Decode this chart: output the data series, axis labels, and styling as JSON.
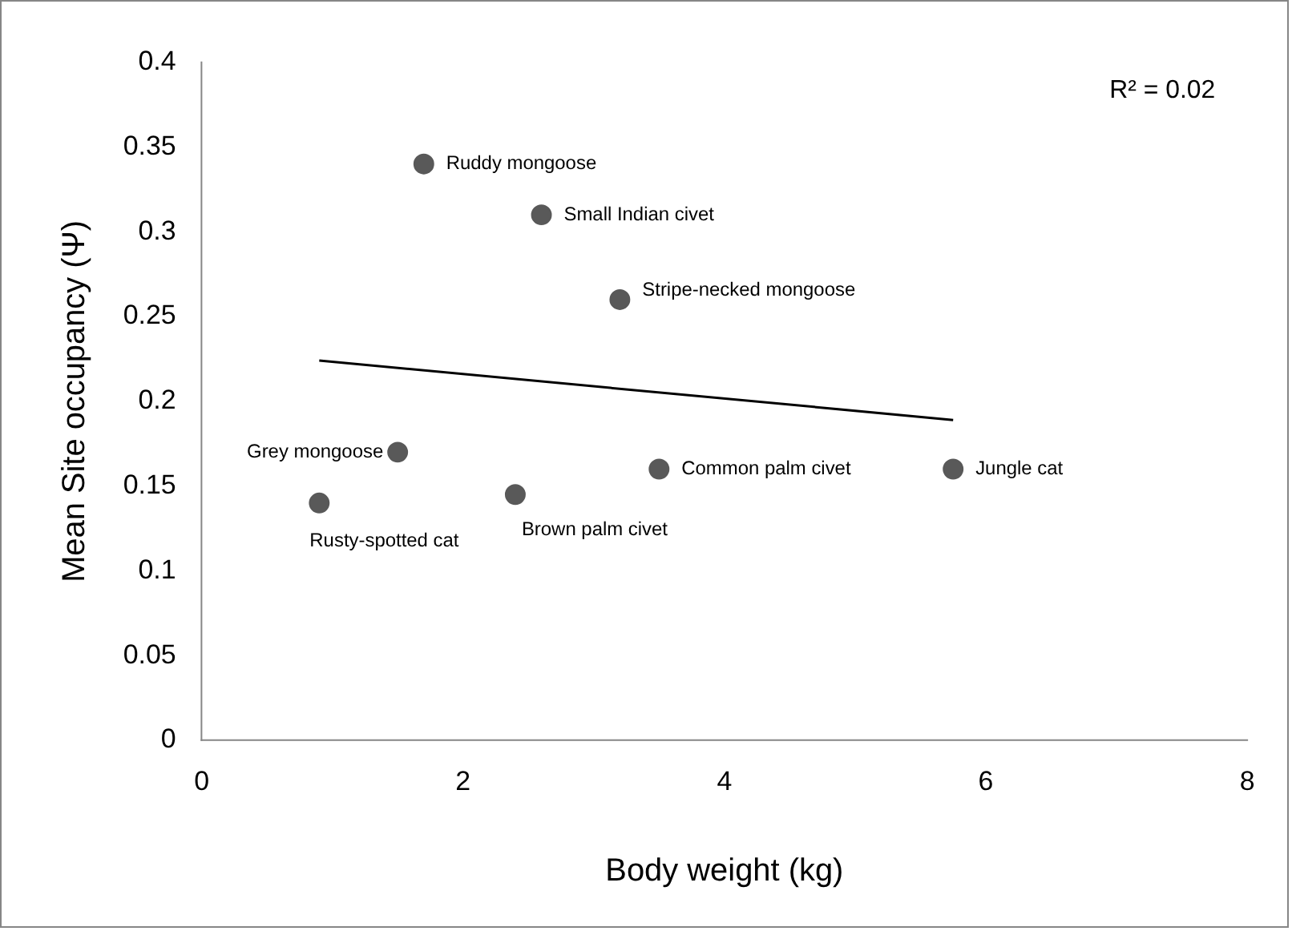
{
  "chart_data": {
    "type": "scatter",
    "xlabel": "Body weight (kg)",
    "ylabel": "Mean Site occupancy (Ψ)",
    "xlim": [
      0,
      8
    ],
    "xticks": [
      0,
      2,
      4,
      6,
      8
    ],
    "ylim": [
      0,
      0.4
    ],
    "yticks": [
      0,
      0.05,
      0.1,
      0.15,
      0.2,
      0.25,
      0.3,
      0.35,
      0.4
    ],
    "grid": false,
    "legend": false,
    "series": [
      {
        "marker": "circle",
        "color": "#595959",
        "x": [
          1.7,
          2.6,
          3.2,
          1.5,
          0.9,
          2.4,
          3.5,
          5.75
        ],
        "values": [
          0.34,
          0.31,
          0.26,
          0.17,
          0.14,
          0.145,
          0.16,
          0.16
        ]
      },
      {
        "type": "line",
        "marker": "none",
        "color": "#000000",
        "x": [
          0.9,
          5.75
        ],
        "values": [
          0.224,
          0.189
        ]
      }
    ],
    "annotations": [
      "R² = 0.02",
      {
        "text": "Ruddy mongoose",
        "x": 1.7,
        "y": 0.34
      },
      {
        "text": "Small Indian civet",
        "x": 2.6,
        "y": 0.31
      },
      {
        "text": "Stripe-necked mongoose",
        "x": 3.2,
        "y": 0.26
      },
      {
        "text": "Grey mongoose",
        "x": 1.5,
        "y": 0.17
      },
      {
        "text": "Rusty-spotted cat",
        "x": 0.9,
        "y": 0.14
      },
      {
        "text": "Brown palm civet",
        "x": 2.4,
        "y": 0.145
      },
      {
        "text": "Common palm civet",
        "x": 3.5,
        "y": 0.16
      },
      {
        "text": "Jungle cat",
        "x": 5.75,
        "y": 0.16
      }
    ]
  }
}
